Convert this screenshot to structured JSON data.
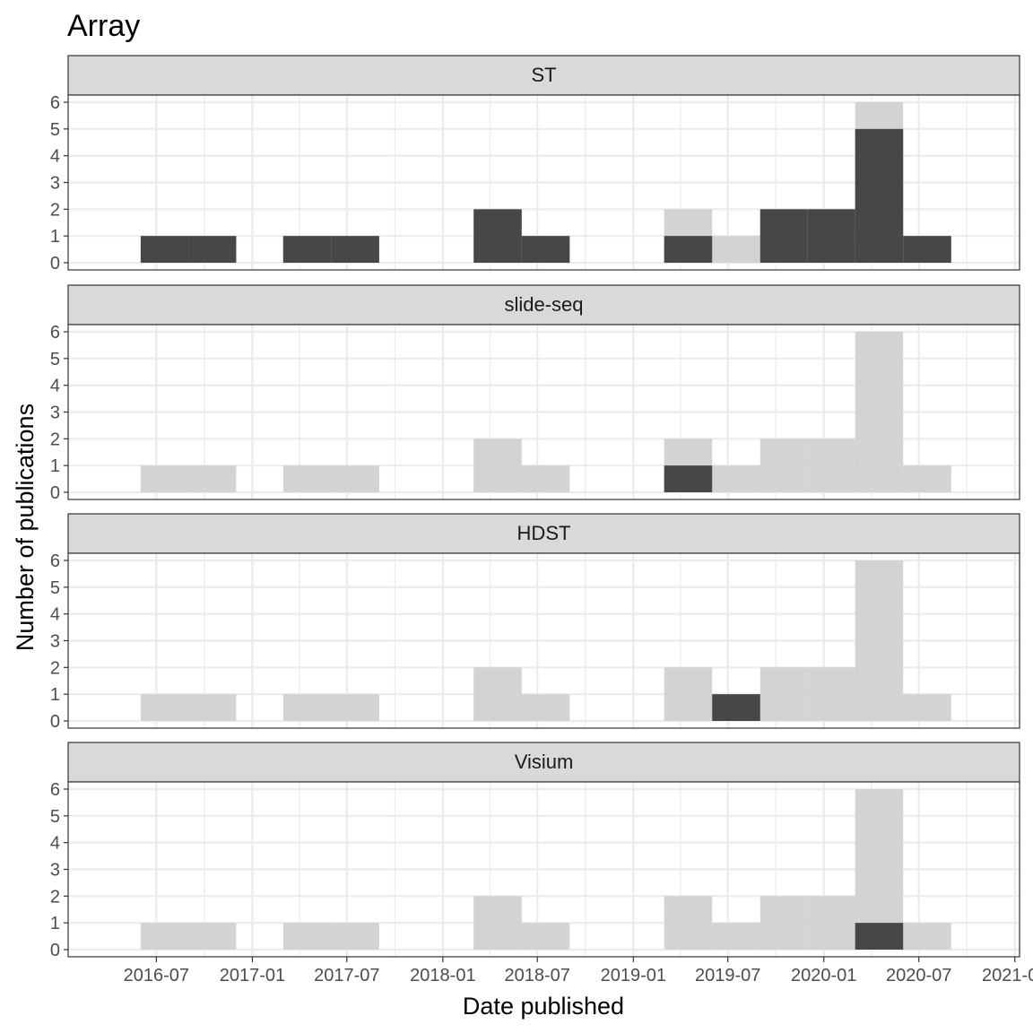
{
  "chart_data": {
    "type": "bar",
    "title": "Array",
    "xlabel": "Date published",
    "ylabel": "Number of publications",
    "ylim": [
      0,
      6
    ],
    "y_ticks": [
      "0",
      "1",
      "2",
      "3",
      "4",
      "5",
      "6"
    ],
    "x_ticks": [
      "2016-07",
      "2017-01",
      "2017-07",
      "2018-01",
      "2018-07",
      "2019-01",
      "2019-07",
      "2020-01",
      "2020-07",
      "2021-01"
    ],
    "grid": true,
    "bin_starts": [
      "2016-06-01",
      "2016-09-01",
      "2016-12-01",
      "2017-03-01",
      "2017-06-01",
      "2017-09-01",
      "2017-12-01",
      "2018-03-01",
      "2018-06-01",
      "2018-09-01",
      "2018-12-01",
      "2019-03-01",
      "2019-06-01",
      "2019-09-01",
      "2019-12-01",
      "2020-03-01",
      "2020-06-01",
      "2020-09-01"
    ],
    "bin_end": "2020-12-01",
    "total_values": [
      1,
      1,
      0,
      1,
      1,
      0,
      0,
      2,
      1,
      0,
      0,
      2,
      1,
      2,
      2,
      6,
      1,
      0
    ],
    "panels": [
      {
        "name": "ST",
        "values": [
          1,
          1,
          0,
          1,
          1,
          0,
          0,
          2,
          1,
          0,
          0,
          1,
          0,
          2,
          2,
          5,
          1,
          0
        ]
      },
      {
        "name": "slide-seq",
        "values": [
          0,
          0,
          0,
          0,
          0,
          0,
          0,
          0,
          0,
          0,
          0,
          1,
          0,
          0,
          0,
          0,
          0,
          0
        ]
      },
      {
        "name": "HDST",
        "values": [
          0,
          0,
          0,
          0,
          0,
          0,
          0,
          0,
          0,
          0,
          0,
          0,
          1,
          0,
          0,
          0,
          0,
          0
        ]
      },
      {
        "name": "Visium",
        "values": [
          0,
          0,
          0,
          0,
          0,
          0,
          0,
          0,
          0,
          0,
          0,
          0,
          0,
          0,
          0,
          1,
          0,
          0
        ]
      }
    ],
    "colors": {
      "highlight": "#474747",
      "background_bars": "#d3d3d3",
      "strip_fill": "#d9d9d9",
      "grid": "#ebebeb",
      "border": "#333333"
    }
  }
}
